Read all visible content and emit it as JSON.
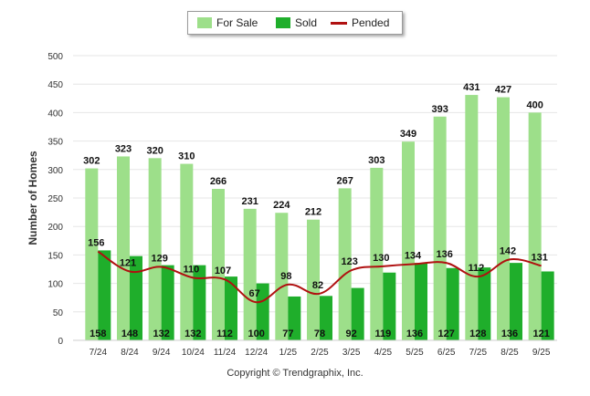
{
  "chart_data": {
    "type": "bar",
    "categories": [
      "7/24",
      "8/24",
      "9/24",
      "10/24",
      "11/24",
      "12/24",
      "1/25",
      "2/25",
      "3/25",
      "4/25",
      "5/25",
      "6/25",
      "7/25",
      "8/25",
      "9/25"
    ],
    "series": [
      {
        "name": "For Sale",
        "type": "bar",
        "color": "#9ddf8a",
        "values": [
          302,
          323,
          320,
          310,
          266,
          231,
          224,
          212,
          267,
          303,
          349,
          393,
          431,
          427,
          400
        ]
      },
      {
        "name": "Sold",
        "type": "bar",
        "color": "#1fae2b",
        "values": [
          158,
          148,
          132,
          132,
          112,
          100,
          77,
          78,
          92,
          119,
          136,
          127,
          128,
          136,
          121
        ]
      },
      {
        "name": "Pended",
        "type": "line",
        "color": "#b01010",
        "values": [
          156,
          121,
          129,
          110,
          107,
          67,
          98,
          82,
          123,
          130,
          134,
          136,
          112,
          142,
          131
        ]
      }
    ],
    "ylabel": "Number of Homes",
    "xlabel": "",
    "ylim": [
      0,
      500
    ],
    "yticks": [
      0,
      50,
      100,
      150,
      200,
      250,
      300,
      350,
      400,
      450,
      500
    ],
    "grid": true,
    "legend_position": "top-center"
  },
  "legend": {
    "for_sale": "For Sale",
    "sold": "Sold",
    "pended": "Pended"
  },
  "copyright": "Copyright © Trendgraphix, Inc."
}
